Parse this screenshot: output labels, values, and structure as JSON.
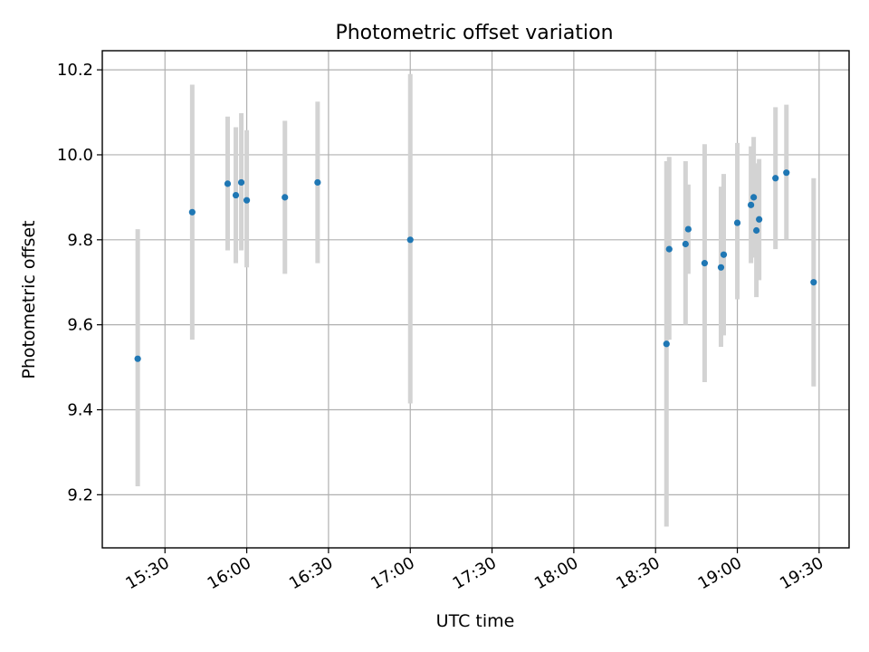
{
  "chart_data": {
    "type": "scatter",
    "title": "Photometric offset variation",
    "xlabel": "UTC time",
    "ylabel": "Photometric offset",
    "x_tick_labels": [
      "15:30",
      "16:00",
      "16:30",
      "17:00",
      "17:30",
      "18:00",
      "18:30",
      "19:00",
      "19:30"
    ],
    "x_tick_times": [
      "15:30",
      "16:00",
      "16:30",
      "17:00",
      "17:30",
      "18:00",
      "18:30",
      "19:00",
      "19:30"
    ],
    "y_tick_labels": [
      "9.2",
      "9.4",
      "9.6",
      "9.8",
      "10.0",
      "10.2"
    ],
    "y_tick_values": [
      9.2,
      9.4,
      9.6,
      9.8,
      10.0,
      10.2
    ],
    "xlim": [
      "15:07",
      "19:41"
    ],
    "ylim": [
      9.075,
      10.245
    ],
    "grid": true,
    "x_tick_rotation": "rotated",
    "marker_color": "#1f77b4",
    "errorbar_color": "#d3d3d3",
    "points": [
      {
        "t": "15:20",
        "y": 9.52,
        "lo": 9.22,
        "hi": 9.825
      },
      {
        "t": "15:40",
        "y": 9.865,
        "lo": 9.565,
        "hi": 10.165
      },
      {
        "t": "15:53",
        "y": 9.932,
        "lo": 9.775,
        "hi": 10.09
      },
      {
        "t": "15:56",
        "y": 9.905,
        "lo": 9.745,
        "hi": 10.065
      },
      {
        "t": "15:58",
        "y": 9.935,
        "lo": 9.775,
        "hi": 10.098
      },
      {
        "t": "16:00",
        "y": 9.893,
        "lo": 9.735,
        "hi": 10.058
      },
      {
        "t": "16:14",
        "y": 9.9,
        "lo": 9.72,
        "hi": 10.08
      },
      {
        "t": "16:26",
        "y": 9.935,
        "lo": 9.745,
        "hi": 10.125
      },
      {
        "t": "17:00",
        "y": 9.8,
        "lo": 9.415,
        "hi": 10.19
      },
      {
        "t": "18:34",
        "y": 9.555,
        "lo": 9.125,
        "hi": 9.985
      },
      {
        "t": "18:35",
        "y": 9.778,
        "lo": 9.565,
        "hi": 9.995
      },
      {
        "t": "18:41",
        "y": 9.79,
        "lo": 9.6,
        "hi": 9.985
      },
      {
        "t": "18:42",
        "y": 9.825,
        "lo": 9.72,
        "hi": 9.93
      },
      {
        "t": "18:48",
        "y": 9.745,
        "lo": 9.465,
        "hi": 10.025
      },
      {
        "t": "18:54",
        "y": 9.735,
        "lo": 9.548,
        "hi": 9.925
      },
      {
        "t": "18:55",
        "y": 9.765,
        "lo": 9.575,
        "hi": 9.955
      },
      {
        "t": "19:00",
        "y": 9.84,
        "lo": 9.66,
        "hi": 10.028
      },
      {
        "t": "19:05",
        "y": 9.882,
        "lo": 9.745,
        "hi": 10.02
      },
      {
        "t": "19:06",
        "y": 9.9,
        "lo": 9.758,
        "hi": 10.042
      },
      {
        "t": "19:07",
        "y": 9.822,
        "lo": 9.665,
        "hi": 9.98
      },
      {
        "t": "19:08",
        "y": 9.848,
        "lo": 9.705,
        "hi": 9.99
      },
      {
        "t": "19:14",
        "y": 9.945,
        "lo": 9.778,
        "hi": 10.112
      },
      {
        "t": "19:18",
        "y": 9.958,
        "lo": 9.8,
        "hi": 10.118
      },
      {
        "t": "19:28",
        "y": 9.7,
        "lo": 9.455,
        "hi": 9.945
      }
    ]
  }
}
